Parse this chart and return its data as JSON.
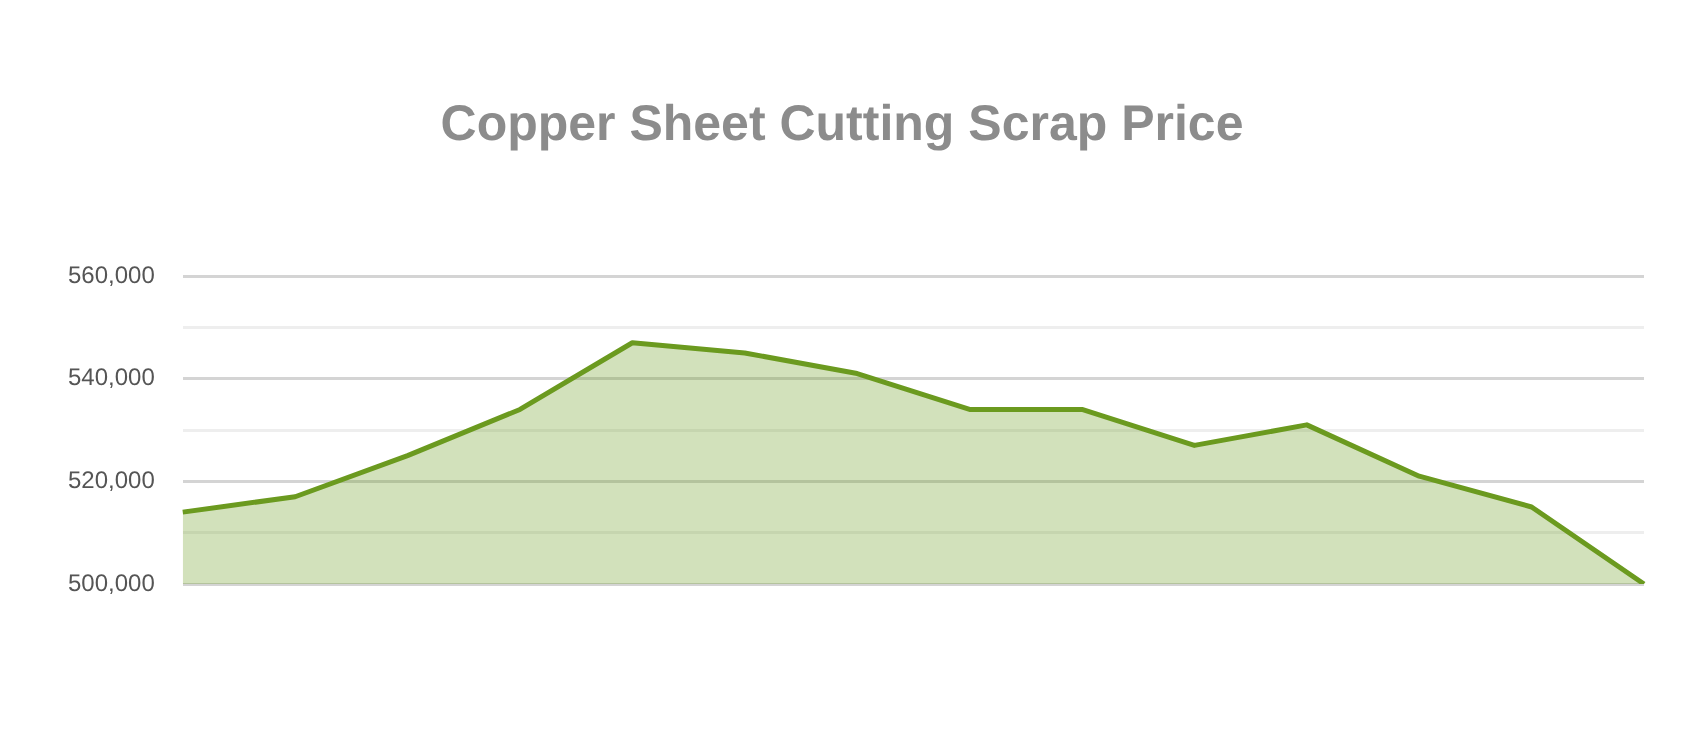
{
  "chart_data": {
    "type": "area",
    "title": "Copper Sheet Cutting Scrap Price",
    "categories": [
      null,
      null,
      null,
      null,
      null,
      null,
      null,
      null,
      null,
      null,
      null,
      null,
      null,
      null
    ],
    "series": [
      {
        "color": "#6b9a1f",
        "values": [
          514000,
          517000,
          525000,
          534000,
          547000,
          545000,
          541000,
          534000,
          534000,
          527000,
          531000,
          521000,
          515000,
          500000
        ]
      }
    ],
    "ylim": [
      500000,
      560000
    ],
    "yticks": [
      {
        "value": 500000,
        "label": "500,000"
      },
      {
        "value": 510000,
        "label": null
      },
      {
        "value": 520000,
        "label": "520,000"
      },
      {
        "value": 530000,
        "label": null
      },
      {
        "value": 540000,
        "label": "540,000"
      },
      {
        "value": 550000,
        "label": null
      },
      {
        "value": 560000,
        "label": "560,000"
      }
    ],
    "grid": "y",
    "tick_labels": "y",
    "marker": "none"
  }
}
